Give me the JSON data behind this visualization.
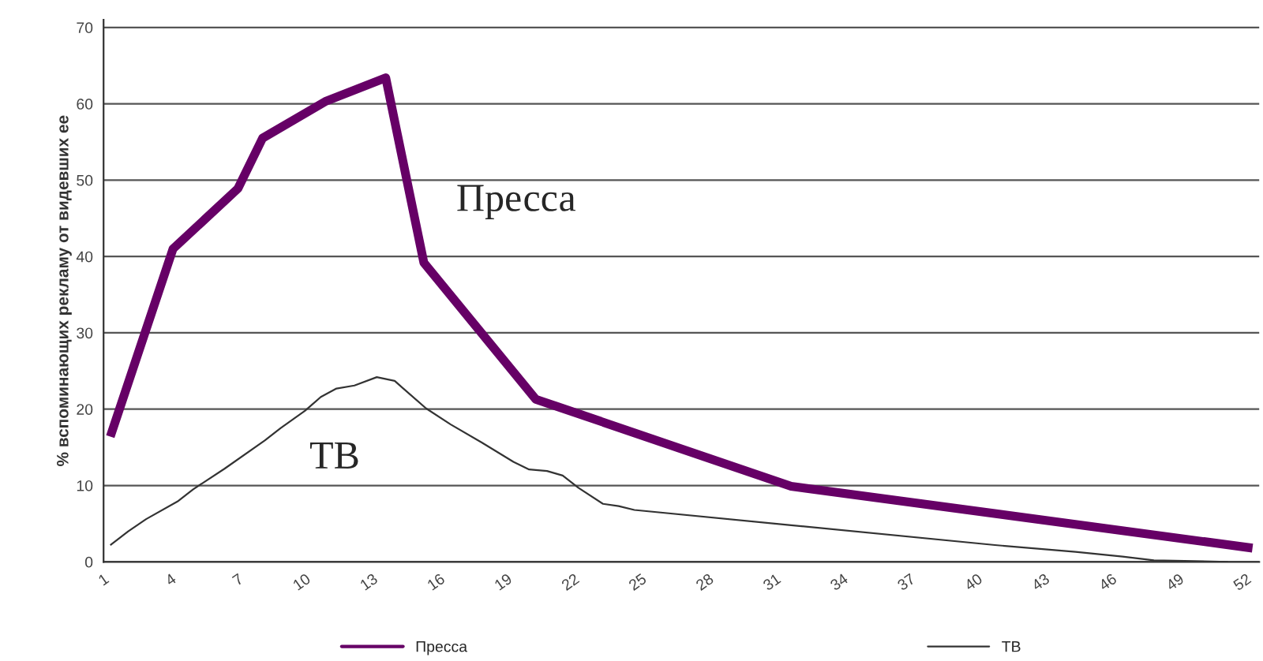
{
  "chart_data": {
    "type": "line",
    "ylabel": "% вспоминающих рекламу от видевших ее",
    "xlim": [
      1,
      52.6
    ],
    "xticks": [
      1,
      4,
      7,
      10,
      13,
      16,
      19,
      22,
      25,
      28,
      31,
      34,
      37,
      40,
      43,
      46,
      49,
      52
    ],
    "ylim": [
      0,
      71
    ],
    "yticks": [
      0,
      10,
      20,
      30,
      40,
      50,
      60,
      70
    ],
    "grid": "y",
    "legend": "bottom",
    "marker": "none",
    "line_style": "solid",
    "series": [
      {
        "name": "Пресса",
        "color": "#660066",
        "x": [
          1.3,
          4.1,
          7.0,
          8.1,
          10.9,
          13.6,
          15.3,
          20.3,
          31.7,
          52.3
        ],
        "values": [
          16.4,
          41.0,
          48.9,
          55.5,
          60.3,
          63.4,
          39.2,
          21.3,
          9.9,
          1.8
        ]
      },
      {
        "name": "ТВ",
        "color": "#333333",
        "x": [
          1.3,
          2.1,
          2.9,
          4.3,
          5.0,
          6.4,
          8.2,
          8.9,
          10.0,
          10.7,
          11.4,
          12.2,
          13.2,
          14.0,
          15.4,
          16.5,
          17.9,
          19.3,
          20.0,
          20.8,
          21.5,
          22.2,
          23.3,
          24.0,
          24.7,
          31.7,
          40.8,
          44.4,
          46.5,
          47.9,
          51.2
        ],
        "values": [
          2.2,
          4.0,
          5.6,
          7.9,
          9.5,
          12.2,
          15.9,
          17.5,
          19.8,
          21.6,
          22.7,
          23.1,
          24.2,
          23.7,
          20.1,
          18.0,
          15.6,
          13.1,
          12.1,
          11.9,
          11.3,
          9.7,
          7.6,
          7.3,
          6.8,
          4.8,
          2.2,
          1.3,
          0.7,
          0.2,
          0.0
        ]
      }
    ],
    "annotations": [
      "Пресса",
      "ТВ"
    ]
  }
}
